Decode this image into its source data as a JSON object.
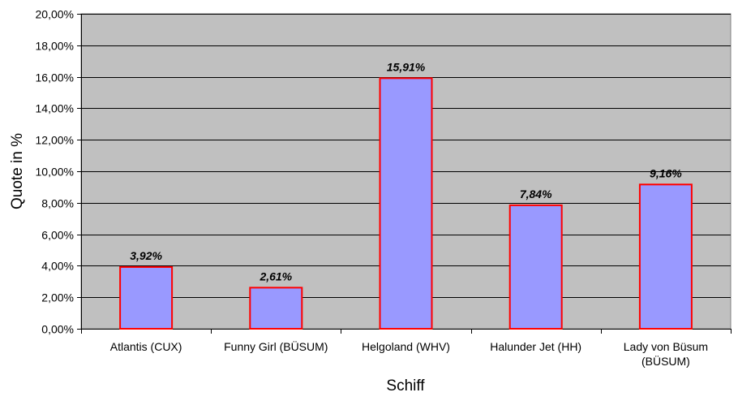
{
  "chart_data": {
    "type": "bar",
    "categories": [
      "Atlantis (CUX)",
      "Funny Girl (BÜSUM)",
      "Helgoland (WHV)",
      "Halunder Jet (HH)",
      "Lady von Büsum (BÜSUM)"
    ],
    "category_lines": [
      [
        "Atlantis (CUX)"
      ],
      [
        "Funny Girl (BÜSUM)"
      ],
      [
        "Helgoland (WHV)"
      ],
      [
        "Halunder Jet (HH)"
      ],
      [
        "Lady von Büsum",
        "(BÜSUM)"
      ]
    ],
    "values": [
      3.92,
      2.61,
      15.91,
      7.84,
      9.16
    ],
    "value_labels": [
      "3,92%",
      "2,61%",
      "15,91%",
      "7,84%",
      "9,16%"
    ],
    "title": "",
    "xlabel": "Schiff",
    "ylabel": "Quote in %",
    "ylim": [
      0,
      20
    ],
    "yticks": [
      0,
      2,
      4,
      6,
      8,
      10,
      12,
      14,
      16,
      18,
      20
    ],
    "ytick_labels": [
      "0,00%",
      "2,00%",
      "4,00%",
      "6,00%",
      "8,00%",
      "10,00%",
      "12,00%",
      "14,00%",
      "16,00%",
      "18,00%",
      "20,00%"
    ],
    "grid": true,
    "legend": "none",
    "colors": {
      "bar_fill": "#9999ff",
      "bar_stroke": "#ff0000",
      "plot_background": "#c0c0c0",
      "gridline": "#000000"
    }
  }
}
